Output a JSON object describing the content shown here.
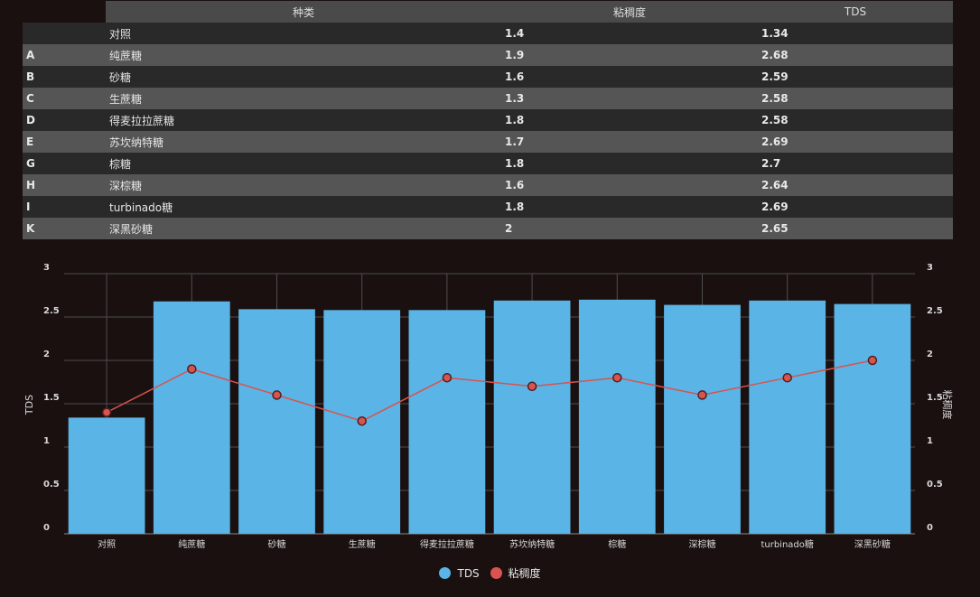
{
  "table": {
    "headers": [
      "",
      "种类",
      "粘稠度",
      "TDS"
    ],
    "rows": [
      {
        "key": "",
        "name": "对照",
        "viscosity": "1.4",
        "tds": "1.34"
      },
      {
        "key": "A",
        "name": "纯蔗糖",
        "viscosity": "1.9",
        "tds": "2.68"
      },
      {
        "key": "B",
        "name": "砂糖",
        "viscosity": "1.6",
        "tds": "2.59"
      },
      {
        "key": "C",
        "name": "生蔗糖",
        "viscosity": "1.3",
        "tds": "2.58"
      },
      {
        "key": "D",
        "name": "得麦拉拉蔗糖",
        "viscosity": "1.8",
        "tds": "2.58"
      },
      {
        "key": "E",
        "name": "苏坎纳特糖",
        "viscosity": "1.7",
        "tds": "2.69"
      },
      {
        "key": "G",
        "name": "棕糖",
        "viscosity": "1.8",
        "tds": "2.7"
      },
      {
        "key": "H",
        "name": "深棕糖",
        "viscosity": "1.6",
        "tds": "2.64"
      },
      {
        "key": "I",
        "name": "turbinado糖",
        "viscosity": "1.8",
        "tds": "2.69"
      },
      {
        "key": "K",
        "name": "深黑砂糖",
        "viscosity": "2",
        "tds": "2.65"
      }
    ]
  },
  "chart_data": {
    "type": "bar",
    "categories": [
      "对照",
      "纯蔗糖",
      "砂糖",
      "生蔗糖",
      "得麦拉拉蔗糖",
      "苏坎纳特糖",
      "棕糖",
      "深棕糖",
      "turbinado糖",
      "深黑砂糖"
    ],
    "series": [
      {
        "name": "TDS",
        "type": "bar",
        "axis": "left",
        "color": "#5ab4e5",
        "values": [
          1.34,
          2.68,
          2.59,
          2.58,
          2.58,
          2.69,
          2.7,
          2.64,
          2.69,
          2.65
        ]
      },
      {
        "name": "粘稠度",
        "type": "line",
        "axis": "right",
        "color": "#d9534f",
        "values": [
          1.4,
          1.9,
          1.6,
          1.3,
          1.8,
          1.7,
          1.8,
          1.6,
          1.8,
          2
        ]
      }
    ],
    "ylabel_left": "TDS",
    "ylabel_right": "粘稠度",
    "ylim": [
      0,
      3
    ],
    "yticks": [
      "0",
      "0.5",
      "1",
      "1.5",
      "2",
      "2.5",
      "3"
    ],
    "grid": true,
    "legend_position": "bottom-center"
  }
}
